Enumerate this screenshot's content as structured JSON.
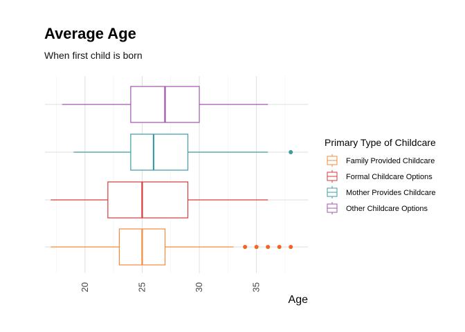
{
  "chart_data": {
    "type": "boxplot",
    "title": "Average Age",
    "subtitle": "When first child is born",
    "xlabel": "Age",
    "ylabel": "",
    "xlim": [
      16.5,
      39.5
    ],
    "xticks": [
      20,
      25,
      30,
      35
    ],
    "x_tick_labels": [
      "20",
      "25",
      "30",
      "35"
    ],
    "grid": true,
    "legend_title": "Primary Type of Childcare",
    "legend_position": "right",
    "series": [
      {
        "name": "Family Provided Childcare",
        "color": "#F58A3B",
        "min": 17,
        "q1": 23,
        "median": 25,
        "q3": 27,
        "max": 33,
        "outliers": [
          34,
          35,
          36,
          37,
          38
        ]
      },
      {
        "name": "Formal Childcare Options",
        "color": "#D63A3A",
        "min": 17,
        "q1": 22,
        "median": 25,
        "q3": 29,
        "max": 36,
        "outliers": []
      },
      {
        "name": "Mother Provides Childcare",
        "color": "#3A9BA0",
        "min": 19,
        "q1": 24,
        "median": 26,
        "q3": 29,
        "max": 36,
        "outliers": [
          38
        ]
      },
      {
        "name": "Other Childcare Options",
        "color": "#A054AE",
        "min": 18,
        "q1": 24,
        "median": 27,
        "q3": 30,
        "max": 36,
        "outliers": []
      }
    ]
  }
}
